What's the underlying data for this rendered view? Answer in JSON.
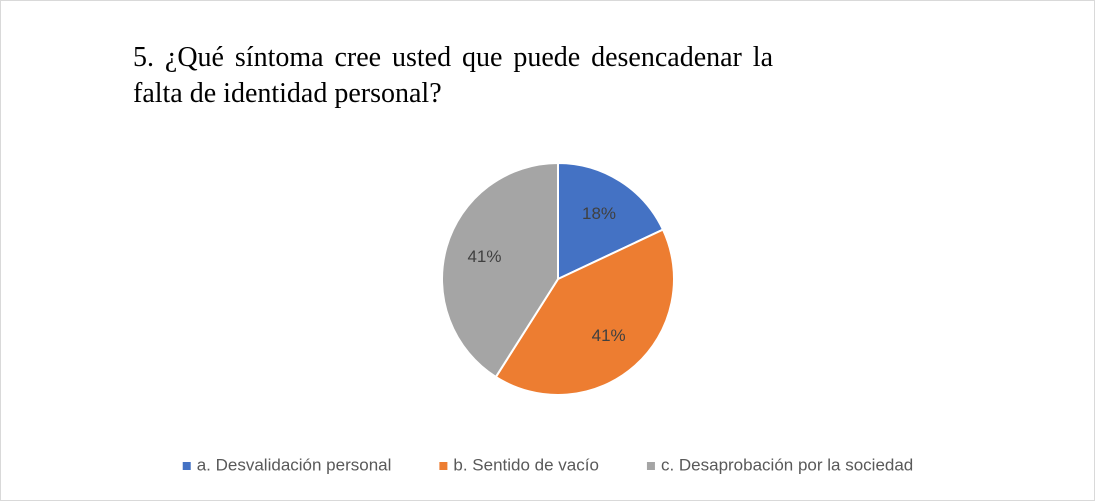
{
  "chart_data": {
    "type": "pie",
    "title": "5. ¿Qué síntoma cree usted que puede desencadenar la falta de identidad personal?",
    "categories": [
      "a. Desvalidación personal",
      "b. Sentido de vacío",
      "c. Desaprobación por la sociedad"
    ],
    "values": [
      18,
      41,
      41
    ],
    "value_labels": [
      "18%",
      "41%",
      "41%"
    ],
    "colors": [
      "#4472c4",
      "#ed7d31",
      "#a5a5a5"
    ],
    "legend": "bottom"
  }
}
